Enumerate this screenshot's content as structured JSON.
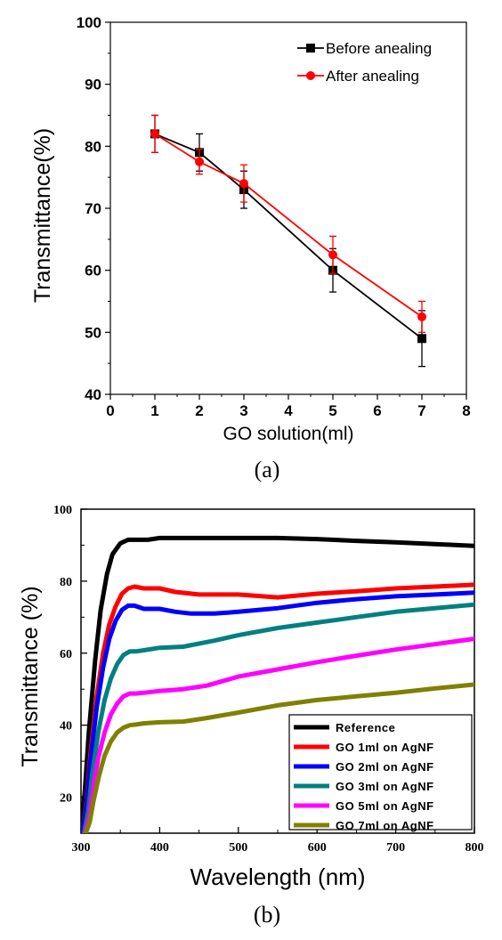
{
  "chart_data": [
    {
      "type": "line",
      "caption": "(a)",
      "xlabel": "GO solution(ml)",
      "ylabel": "Transmittance(%)",
      "xlim": [
        0,
        8
      ],
      "ylim": [
        40,
        100
      ],
      "xticks": [
        0,
        1,
        2,
        3,
        4,
        5,
        6,
        7,
        8
      ],
      "yticks": [
        40,
        50,
        60,
        70,
        80,
        90,
        100
      ],
      "legend_position": "top-right",
      "error_bars": true,
      "series": [
        {
          "name": "Before anealing",
          "color": "#000000",
          "marker": "square",
          "x": [
            1,
            2,
            3,
            5,
            7
          ],
          "y": [
            82,
            79,
            73,
            60,
            49
          ],
          "err": [
            3,
            3,
            3,
            3.5,
            4.5
          ]
        },
        {
          "name": "After anealing",
          "color": "#ff0000",
          "marker": "circle",
          "x": [
            1,
            2,
            3,
            5,
            7
          ],
          "y": [
            82,
            77.5,
            74,
            62.5,
            52.5
          ],
          "err": [
            3,
            2,
            3,
            3,
            2.5
          ]
        }
      ]
    },
    {
      "type": "line",
      "caption": "(b)",
      "xlabel": "Wavelength (nm)",
      "ylabel": "Transmittance (%)",
      "xlim": [
        300,
        800
      ],
      "ylim": [
        10,
        100
      ],
      "xticks": [
        300,
        400,
        500,
        600,
        700,
        800
      ],
      "xtick_labels": [
        "300",
        "400",
        "500",
        "600",
        "700",
        "800"
      ],
      "yticks": [
        20,
        40,
        60,
        80,
        100
      ],
      "legend_position": "bottom-right",
      "series": [
        {
          "name": "Reference",
          "color": "#000000",
          "x": [
            300,
            305,
            310,
            318,
            325,
            333,
            340,
            350,
            360,
            370,
            385,
            400,
            450,
            500,
            550,
            600,
            650,
            700,
            750,
            800
          ],
          "y": [
            10,
            22,
            38,
            58,
            72,
            82,
            87.5,
            90.5,
            91.5,
            91.5,
            91.5,
            92,
            92,
            92,
            92,
            91.7,
            91.2,
            90.8,
            90.3,
            89.8
          ]
        },
        {
          "name": "GO 1ml on AgNF",
          "color": "#ff0000",
          "x": [
            302,
            307,
            312,
            320,
            328,
            336,
            344,
            352,
            360,
            368,
            380,
            400,
            420,
            450,
            500,
            550,
            600,
            650,
            700,
            750,
            800
          ],
          "y": [
            10,
            19,
            32,
            48,
            60,
            68,
            73,
            76.5,
            78,
            78.5,
            78,
            78,
            77,
            76.3,
            76.3,
            75.5,
            76.5,
            77.2,
            78,
            78.5,
            79
          ]
        },
        {
          "name": "GO 2ml on AgNF",
          "color": "#0000ff",
          "x": [
            302,
            307,
            312,
            320,
            328,
            336,
            344,
            352,
            360,
            368,
            380,
            400,
            420,
            440,
            470,
            500,
            550,
            600,
            650,
            700,
            750,
            800
          ],
          "y": [
            10,
            18,
            30,
            45,
            56,
            64,
            69,
            72,
            73.2,
            73.2,
            72.3,
            72.3,
            71.5,
            71,
            71,
            71.5,
            72.5,
            74,
            75,
            75.8,
            76.3,
            76.8
          ]
        },
        {
          "name": "GO 3ml on AgNF",
          "color": "#008080",
          "x": [
            304,
            309,
            314,
            322,
            330,
            338,
            346,
            354,
            362,
            370,
            380,
            400,
            430,
            470,
            500,
            550,
            600,
            650,
            700,
            750,
            800
          ],
          "y": [
            10,
            16,
            26,
            38,
            47,
            53,
            57,
            59.5,
            60.5,
            60.5,
            60.8,
            61.5,
            61.8,
            63.5,
            65,
            67,
            68.5,
            70,
            71.5,
            72.5,
            73.5
          ]
        },
        {
          "name": "GO 5ml on AgNF",
          "color": "#ff00ff",
          "x": [
            305,
            310,
            315,
            322,
            330,
            338,
            346,
            354,
            362,
            370,
            380,
            400,
            430,
            460,
            500,
            550,
            600,
            650,
            700,
            750,
            800
          ],
          "y": [
            10,
            14,
            22,
            31,
            38,
            43,
            46,
            48,
            48.8,
            48.8,
            49,
            49.5,
            50,
            51,
            53.5,
            55.5,
            57.5,
            59.3,
            61,
            62.5,
            64
          ]
        },
        {
          "name": "GO 7ml on AgNF",
          "color": "#808000",
          "x": [
            306,
            311,
            316,
            323,
            330,
            338,
            346,
            354,
            362,
            370,
            380,
            400,
            430,
            460,
            500,
            550,
            600,
            650,
            700,
            750,
            800
          ],
          "y": [
            10,
            13,
            19,
            26,
            31.5,
            35.5,
            38,
            39.3,
            40,
            40.2,
            40.5,
            40.8,
            41,
            42,
            43.5,
            45.5,
            47,
            48,
            49,
            50.2,
            51.3
          ]
        }
      ]
    }
  ]
}
